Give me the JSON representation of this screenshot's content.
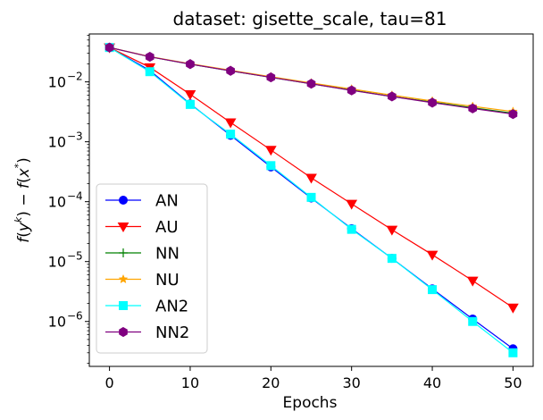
{
  "chart_data": {
    "type": "line",
    "title": "dataset: gisette_scale, tau=81",
    "xlabel": "Epochs",
    "ylabel": "f(y^k) − f(x^*)",
    "xlim": [
      -2.5,
      52.5
    ],
    "ylim_log10": [
      -6.75,
      -1.2
    ],
    "yscale": "log",
    "x_ticks": [
      0,
      10,
      20,
      30,
      40,
      50
    ],
    "y_ticks": [
      {
        "exp": -2,
        "label": "10",
        "sup": "−2"
      },
      {
        "exp": -3,
        "label": "10",
        "sup": "−3"
      },
      {
        "exp": -4,
        "label": "10",
        "sup": "−4"
      },
      {
        "exp": -5,
        "label": "10",
        "sup": "−5"
      },
      {
        "exp": -6,
        "label": "10",
        "sup": "−6"
      }
    ],
    "x": [
      0,
      5,
      10,
      15,
      20,
      25,
      30,
      35,
      40,
      45,
      50
    ],
    "legend_position": "lower-left",
    "series": [
      {
        "name": "AN",
        "color": "#0000ff",
        "marker": "circle",
        "values": [
          0.0375,
          0.0155,
          0.0043,
          0.00128,
          0.00038,
          0.000115,
          3.55e-05,
          1.13e-05,
          3.5e-06,
          1.1e-06,
          3.5e-07
        ]
      },
      {
        "name": "AU",
        "color": "#ff0000",
        "marker": "triangle-down",
        "values": [
          0.0375,
          0.0175,
          0.0062,
          0.0021,
          0.00073,
          0.00025,
          9.2e-05,
          3.4e-05,
          1.3e-05,
          4.8e-06,
          1.7e-06
        ]
      },
      {
        "name": "NN",
        "color": "#008000",
        "marker": "plus",
        "values": [
          0.0375,
          0.0262,
          0.0198,
          0.0153,
          0.0119,
          0.0093,
          0.0073,
          0.0057,
          0.0046,
          0.0037,
          0.003
        ]
      },
      {
        "name": "NU",
        "color": "#ffa500",
        "marker": "star",
        "values": [
          0.0375,
          0.0264,
          0.0201,
          0.0156,
          0.0122,
          0.0096,
          0.0076,
          0.006,
          0.0048,
          0.0039,
          0.0032
        ]
      },
      {
        "name": "AN2",
        "color": "#00ffff",
        "marker": "square",
        "values": [
          0.0375,
          0.0148,
          0.0042,
          0.00134,
          0.0004,
          0.000118,
          3.45e-05,
          1.13e-05,
          3.4e-06,
          1e-06,
          3e-07
        ]
      },
      {
        "name": "NN2",
        "color": "#800080",
        "marker": "hexagon",
        "values": [
          0.0375,
          0.0262,
          0.0198,
          0.0153,
          0.0119,
          0.0093,
          0.0072,
          0.0057,
          0.0045,
          0.0036,
          0.0029
        ]
      }
    ]
  }
}
